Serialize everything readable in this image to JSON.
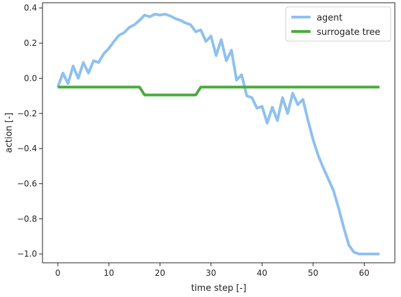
{
  "chart_data": {
    "type": "line",
    "title": "",
    "xlabel": "time step [-]",
    "ylabel": "action [-]",
    "xlim": [
      -3,
      66
    ],
    "ylim": [
      -1.05,
      0.43
    ],
    "xticks": [
      0,
      10,
      20,
      30,
      40,
      50,
      60
    ],
    "yticks": [
      -1.0,
      -0.8,
      -0.6,
      -0.4,
      -0.2,
      0.0,
      0.2,
      0.4
    ],
    "xtick_labels": [
      "0",
      "10",
      "20",
      "30",
      "40",
      "50",
      "60"
    ],
    "ytick_labels": [
      "−1.0",
      "−0.8",
      "−0.6",
      "−0.4",
      "−0.2",
      "0.0",
      "0.2",
      "0.4"
    ],
    "grid": false,
    "legend_position": "top-right",
    "series": [
      {
        "name": "agent",
        "color": "#8ec1ee",
        "x": [
          0,
          1,
          2,
          3,
          4,
          5,
          6,
          7,
          8,
          9,
          10,
          11,
          12,
          13,
          14,
          15,
          16,
          17,
          18,
          19,
          20,
          21,
          22,
          23,
          24,
          25,
          26,
          27,
          28,
          29,
          30,
          31,
          32,
          33,
          34,
          35,
          36,
          37,
          38,
          39,
          40,
          41,
          42,
          43,
          44,
          45,
          46,
          47,
          48,
          49,
          50,
          51,
          52,
          53,
          54,
          55,
          56,
          57,
          58,
          59,
          60,
          61,
          62,
          63
        ],
        "y": [
          -0.05,
          0.03,
          -0.03,
          0.07,
          0.0,
          0.09,
          0.03,
          0.1,
          0.09,
          0.14,
          0.17,
          0.21,
          0.245,
          0.26,
          0.29,
          0.305,
          0.33,
          0.36,
          0.35,
          0.365,
          0.36,
          0.365,
          0.355,
          0.34,
          0.33,
          0.315,
          0.305,
          0.265,
          0.275,
          0.21,
          0.24,
          0.13,
          0.22,
          0.1,
          0.16,
          -0.01,
          0.02,
          -0.1,
          -0.11,
          -0.17,
          -0.16,
          -0.255,
          -0.165,
          -0.24,
          -0.11,
          -0.2,
          -0.085,
          -0.15,
          -0.12,
          -0.24,
          -0.35,
          -0.44,
          -0.51,
          -0.575,
          -0.64,
          -0.74,
          -0.85,
          -0.95,
          -0.99,
          -1.0,
          -1.0,
          -1.0,
          -1.0,
          -1.0
        ]
      },
      {
        "name": "surrogate tree",
        "color": "#4aab3c",
        "x": [
          0,
          16,
          17,
          27,
          28,
          63
        ],
        "y": [
          -0.05,
          -0.05,
          -0.095,
          -0.095,
          -0.05,
          -0.05
        ]
      }
    ]
  }
}
